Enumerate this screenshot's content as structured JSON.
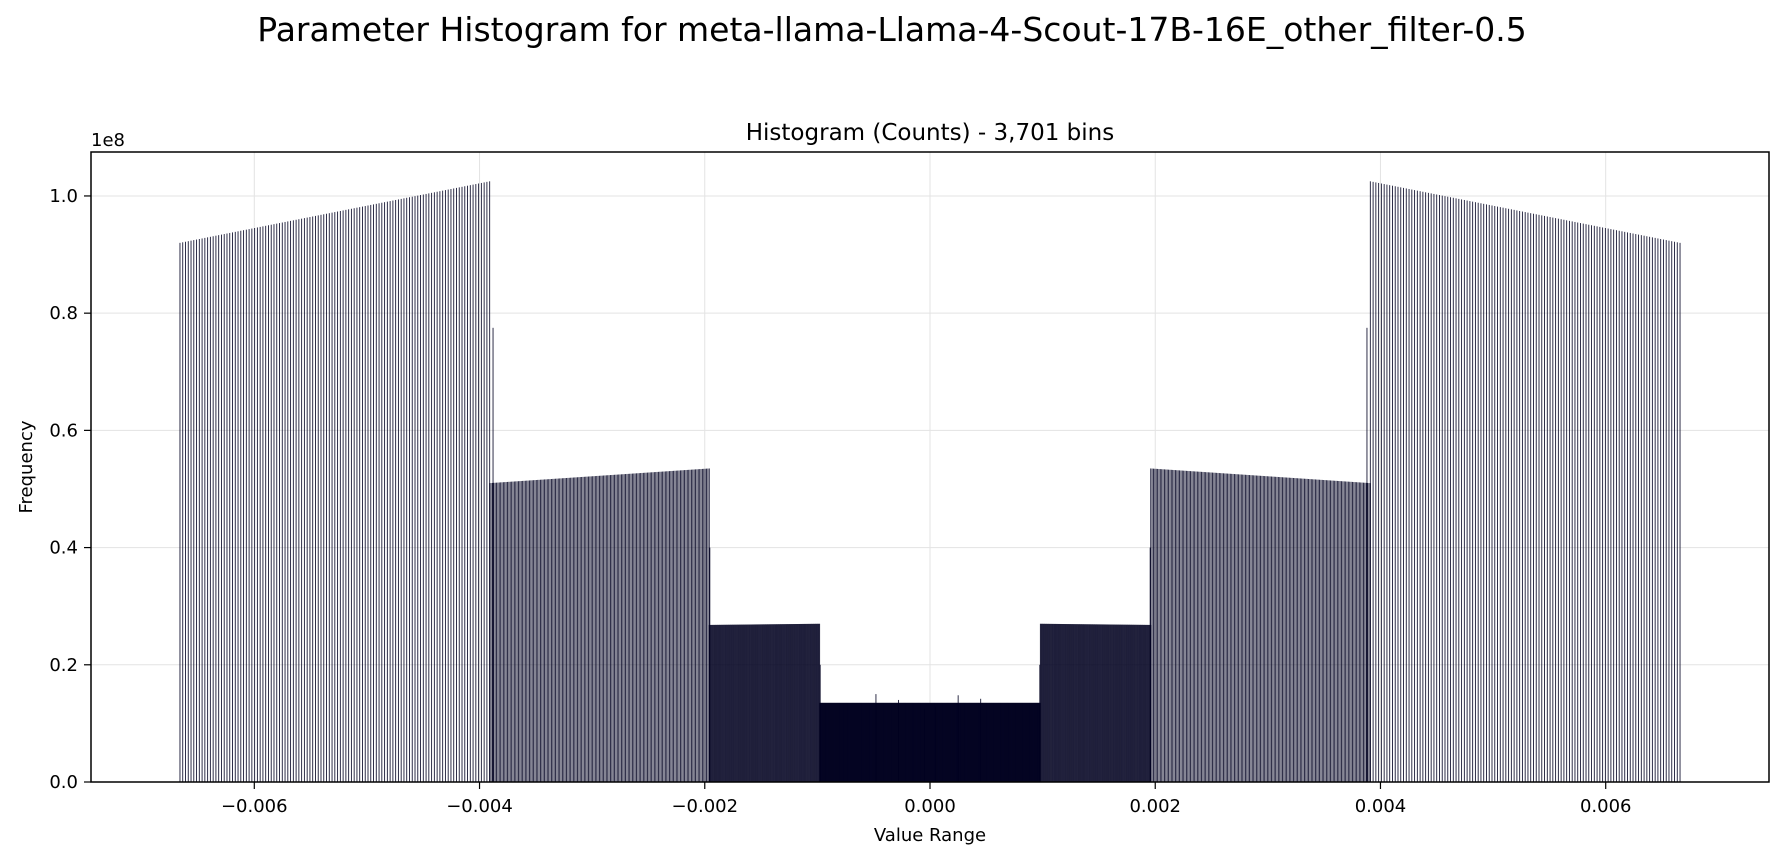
{
  "figure": {
    "title": "Parameter Histogram for meta-llama-Llama-4-Scout-17B-16E_other_filter-0.5"
  },
  "chart_data": {
    "type": "bar",
    "title": "Histogram (Counts) - 3,701 bins",
    "xlabel": "Value Range",
    "ylabel": "Frequency",
    "y_scale_note": "1e8",
    "xlim": [
      -0.00745,
      0.00745
    ],
    "ylim": [
      0,
      107500000
    ],
    "grid": true,
    "bar_color": "#000020",
    "x_ticks": [
      -0.006,
      -0.004,
      -0.002,
      0.0,
      0.002,
      0.004,
      0.006
    ],
    "x_tick_labels": [
      "−0.006",
      "−0.004",
      "−0.002",
      "0.000",
      "0.002",
      "0.004",
      "0.006"
    ],
    "y_ticks": [
      0,
      20000000,
      40000000,
      60000000,
      80000000,
      100000000
    ],
    "y_tick_labels": [
      "0.0",
      "0.2",
      "0.4",
      "0.6",
      "0.8",
      "1.0"
    ],
    "segments": [
      {
        "range": [
          -0.00666,
          -0.00391
        ],
        "count_start": 92000000,
        "count_end": 102500000,
        "step": 2.45e-05
      },
      {
        "range": [
          -0.00391,
          -0.00196
        ],
        "count_start": 51000000,
        "count_end": 53500000,
        "step": 1.22e-05
      },
      {
        "range": [
          -0.00196,
          -0.00098
        ],
        "count_start": 26800000,
        "count_end": 27000000,
        "step": 6.1e-06
      },
      {
        "range": [
          -0.00098,
          0.00098
        ],
        "count_start": 13500000,
        "count_end": 13500000,
        "step": 3.1e-06
      },
      {
        "range": [
          0.00098,
          0.00196
        ],
        "count_start": 27000000,
        "count_end": 26800000,
        "step": 6.1e-06
      },
      {
        "range": [
          0.00196,
          0.00391
        ],
        "count_start": 53500000,
        "count_end": 51000000,
        "step": 1.22e-05
      },
      {
        "range": [
          0.00391,
          0.00666
        ],
        "count_start": 102500000,
        "count_end": 92000000,
        "step": 2.45e-05
      }
    ],
    "extra_bars": [
      {
        "x": -0.00388,
        "value": 77500000
      },
      {
        "x": -0.001955,
        "value": 40000000
      },
      {
        "x": -0.000975,
        "value": 20000000
      },
      {
        "x": 0.000975,
        "value": 20000000
      },
      {
        "x": 0.001955,
        "value": 40000000
      },
      {
        "x": 0.00388,
        "value": 77500000
      },
      {
        "x": -0.00048,
        "value": 15000000
      },
      {
        "x": -0.00028,
        "value": 14000000
      },
      {
        "x": -5e-05,
        "value": 12500000
      },
      {
        "x": 5e-05,
        "value": 12800000
      },
      {
        "x": 0.00025,
        "value": 14800000
      },
      {
        "x": 0.00045,
        "value": 14200000
      }
    ]
  }
}
